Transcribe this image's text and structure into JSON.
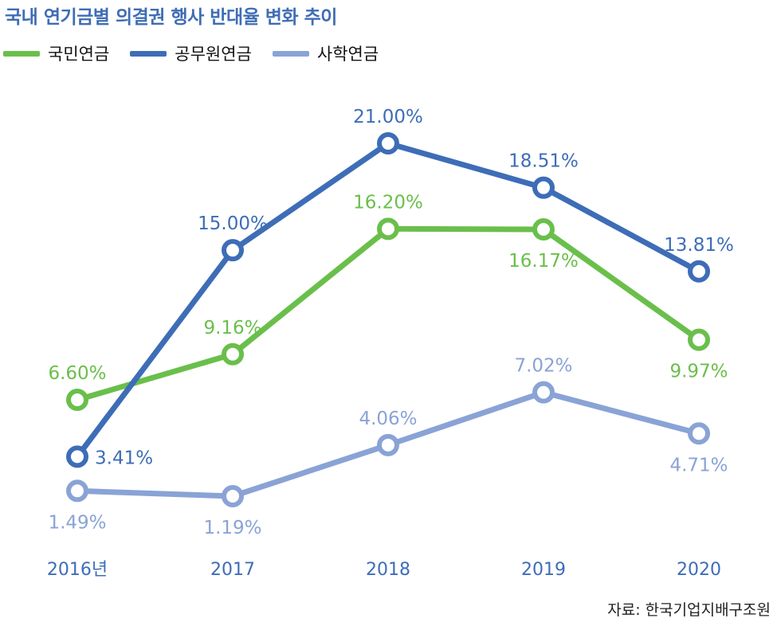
{
  "title": "국내 연기금별 의결권 행사 반대율 변화 추이",
  "source": "자료: 한국기업지배구조원",
  "chart_data": {
    "type": "line",
    "categories": [
      "2016년",
      "2017",
      "2018",
      "2019",
      "2020"
    ],
    "ylim": [
      0,
      22
    ],
    "grid": false,
    "legend_position": "top-left",
    "series": [
      {
        "name": "국민연금",
        "color": "#6abf4b",
        "values": [
          6.6,
          9.16,
          16.2,
          16.17,
          9.97
        ],
        "labels": [
          "6.60%",
          "9.16%",
          "16.20%",
          "16.17%",
          "9.97%"
        ],
        "label_pos": [
          "above",
          "above",
          "above",
          "below",
          "below"
        ]
      },
      {
        "name": "공무원연금",
        "color": "#3e6db7",
        "values": [
          3.41,
          15.0,
          21.0,
          18.51,
          13.81
        ],
        "labels": [
          "3.41%",
          "15.00%",
          "21.00%",
          "18.51%",
          "13.81%"
        ],
        "label_pos": [
          "right",
          "above",
          "above",
          "above",
          "above"
        ]
      },
      {
        "name": "사학연금",
        "color": "#8aa3d6",
        "values": [
          1.49,
          1.19,
          4.06,
          7.02,
          4.71
        ],
        "labels": [
          "1.49%",
          "1.19%",
          "4.06%",
          "7.02%",
          "4.71%"
        ],
        "label_pos": [
          "below",
          "below",
          "above",
          "above",
          "below"
        ]
      }
    ]
  }
}
